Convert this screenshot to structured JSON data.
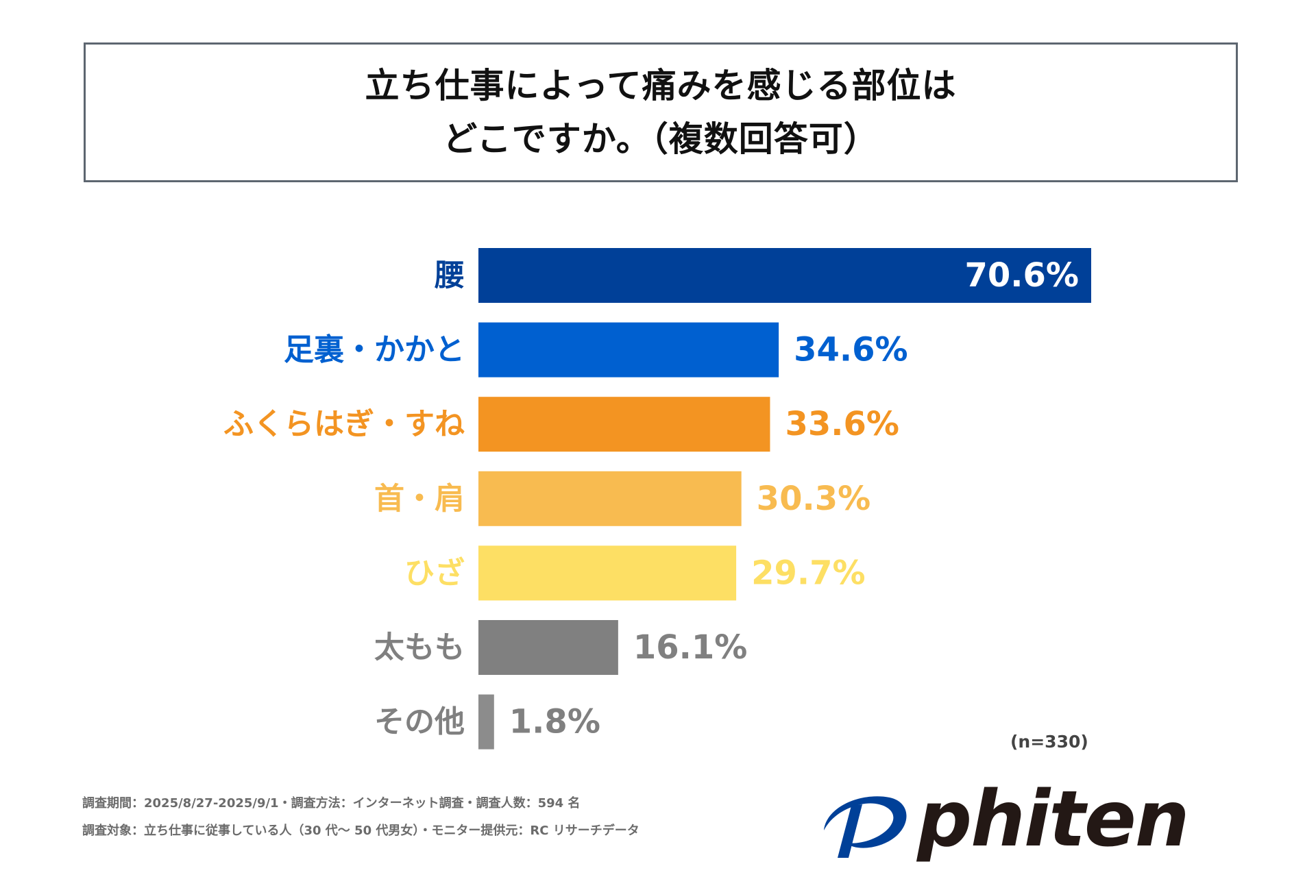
{
  "title": {
    "line1": "立ち仕事によって痛みを感じる部位は",
    "line2": "どこですか。（複数回答可）"
  },
  "chart_data": {
    "type": "bar",
    "orientation": "horizontal",
    "title": "立ち仕事によって痛みを感じる部位はどこですか。（複数回答可）",
    "categories": [
      "腰",
      "足裏・かかと",
      "ふくらはぎ・すね",
      "首・肩",
      "ひざ",
      "太もも",
      "その他"
    ],
    "values": [
      70.6,
      34.6,
      33.6,
      30.3,
      29.7,
      16.1,
      1.8
    ],
    "value_labels": [
      "70.6%",
      "34.6%",
      "33.6%",
      "30.3%",
      "29.7%",
      "16.1%",
      "1.8%"
    ],
    "colors": [
      "#004098",
      "#0060d0",
      "#f39422",
      "#f8bb50",
      "#fddf64",
      "#808080",
      "#8c8c8c"
    ],
    "label_colors": [
      "#004098",
      "#0060d0",
      "#f39422",
      "#f8bb50",
      "#fddf64",
      "#808080",
      "#808080"
    ],
    "xlim": [
      0,
      100
    ],
    "unit": "%",
    "grid": false,
    "legend": "none"
  },
  "sample_size": "(n=330)",
  "footer": {
    "line1": "調査期間：2025/8/27-2025/9/1・調査方法：インターネット調査・調査人数：594 名",
    "line2": "調査対象：立ち仕事に従事している人（30 代〜 50 代男女）・モニター提供元：RC リサーチデータ"
  },
  "logo": {
    "text": "phiten",
    "color": "#231815",
    "mark_color": "#004098"
  }
}
